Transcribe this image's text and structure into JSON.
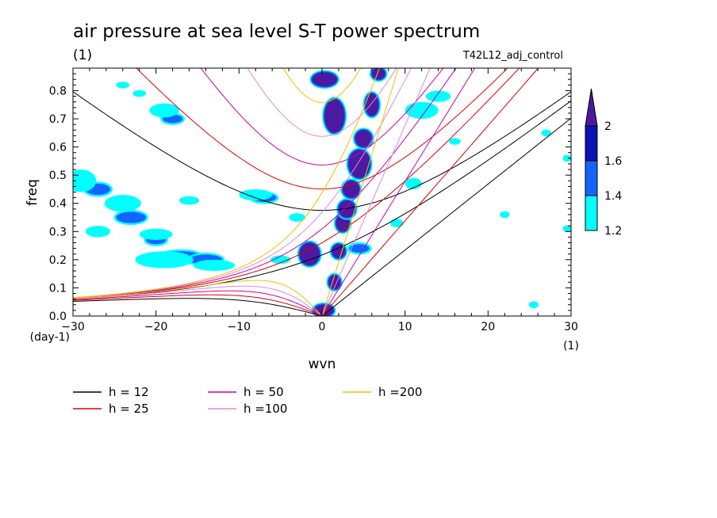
{
  "chart_data": {
    "type": "heatmap",
    "title": "air pressure at sea level S-T power spectrum",
    "title_unit": "(1)",
    "subtitle_right": "T42L12_adj_control",
    "xlabel": "wvn",
    "ylabel": "freq",
    "x_unit": "(1)",
    "y_unit": "(day-1)",
    "xlim": [
      -30,
      30
    ],
    "ylim": [
      0,
      0.88
    ],
    "xticks": [
      -30,
      -20,
      -10,
      0,
      10,
      20,
      30
    ],
    "yticks": [
      0.0,
      0.1,
      0.2,
      0.3,
      0.4,
      0.5,
      0.6,
      0.7,
      0.8
    ],
    "colorbar": {
      "levels": [
        "1.2",
        "1.4",
        "1.6",
        "2"
      ],
      "colors": [
        "#00ffff",
        "#1464ff",
        "#0a14b4",
        "#4b1aa0"
      ]
    },
    "dispersion_curves": [
      {
        "label": "h = 12",
        "h": 12,
        "color": "#000000"
      },
      {
        "label": "h = 25",
        "h": 25,
        "color": "#dd0000"
      },
      {
        "label": "h = 50",
        "h": 50,
        "color": "#cc00aa"
      },
      {
        "label": "h =100",
        "h": 100,
        "color": "#dd88dd"
      },
      {
        "label": "h =200",
        "h": 200,
        "color": "#f0c000"
      }
    ],
    "shaded_regions": [
      {
        "level": "2",
        "x": 0.2,
        "y": 0.02,
        "rx": 1.2,
        "ry": 0.02
      },
      {
        "level": "2",
        "x": 1.5,
        "y": 0.12,
        "rx": 0.7,
        "ry": 0.025
      },
      {
        "level": "2",
        "x": -1.5,
        "y": 0.22,
        "rx": 1.2,
        "ry": 0.04
      },
      {
        "level": "2",
        "x": 2.0,
        "y": 0.23,
        "rx": 0.8,
        "ry": 0.025
      },
      {
        "level": "2",
        "x": 2.5,
        "y": 0.33,
        "rx": 0.8,
        "ry": 0.03
      },
      {
        "level": "2",
        "x": 3.0,
        "y": 0.38,
        "rx": 1.0,
        "ry": 0.03
      },
      {
        "level": "2",
        "x": 3.5,
        "y": 0.45,
        "rx": 1.0,
        "ry": 0.03
      },
      {
        "level": "2",
        "x": 4.5,
        "y": 0.54,
        "rx": 1.3,
        "ry": 0.05
      },
      {
        "level": "2",
        "x": 5.0,
        "y": 0.63,
        "rx": 1.0,
        "ry": 0.03
      },
      {
        "level": "2",
        "x": 1.5,
        "y": 0.71,
        "rx": 1.2,
        "ry": 0.06
      },
      {
        "level": "2",
        "x": 6.0,
        "y": 0.75,
        "rx": 0.8,
        "ry": 0.04
      },
      {
        "level": "2",
        "x": 0.3,
        "y": 0.84,
        "rx": 1.5,
        "ry": 0.025
      },
      {
        "level": "2",
        "x": 6.8,
        "y": 0.86,
        "rx": 0.8,
        "ry": 0.02
      },
      {
        "level": "1.4",
        "x": -23,
        "y": 0.35,
        "rx": 1.8,
        "ry": 0.02
      },
      {
        "level": "1.4",
        "x": -20,
        "y": 0.27,
        "rx": 1.2,
        "ry": 0.015
      },
      {
        "level": "1.4",
        "x": -17,
        "y": 0.21,
        "rx": 2.5,
        "ry": 0.02
      },
      {
        "level": "1.4",
        "x": -14,
        "y": 0.2,
        "rx": 2.0,
        "ry": 0.018
      },
      {
        "level": "1.4",
        "x": -27,
        "y": 0.45,
        "rx": 1.5,
        "ry": 0.02
      },
      {
        "level": "1.4",
        "x": -18,
        "y": 0.7,
        "rx": 1.2,
        "ry": 0.015
      },
      {
        "level": "1.4",
        "x": -7,
        "y": 0.42,
        "rx": 1.5,
        "ry": 0.015
      },
      {
        "level": "1.4",
        "x": 4.5,
        "y": 0.24,
        "rx": 1.2,
        "ry": 0.015
      },
      {
        "level": "1.2",
        "x": -29,
        "y": 0.48,
        "rx": 1.8,
        "ry": 0.04
      },
      {
        "level": "1.2",
        "x": -24,
        "y": 0.4,
        "rx": 2.2,
        "ry": 0.03
      },
      {
        "level": "1.2",
        "x": -27,
        "y": 0.3,
        "rx": 1.5,
        "ry": 0.02
      },
      {
        "level": "1.2",
        "x": -19,
        "y": 0.2,
        "rx": 3.5,
        "ry": 0.03
      },
      {
        "level": "1.2",
        "x": -13,
        "y": 0.18,
        "rx": 2.5,
        "ry": 0.02
      },
      {
        "level": "1.2",
        "x": -20,
        "y": 0.29,
        "rx": 2.0,
        "ry": 0.02
      },
      {
        "level": "1.2",
        "x": -16,
        "y": 0.41,
        "rx": 1.2,
        "ry": 0.015
      },
      {
        "level": "1.2",
        "x": -19,
        "y": 0.73,
        "rx": 1.8,
        "ry": 0.025
      },
      {
        "level": "1.2",
        "x": -22,
        "y": 0.79,
        "rx": 0.8,
        "ry": 0.012
      },
      {
        "level": "1.2",
        "x": -8,
        "y": 0.43,
        "rx": 2.0,
        "ry": 0.02
      },
      {
        "level": "1.2",
        "x": -5,
        "y": 0.2,
        "rx": 1.2,
        "ry": 0.015
      },
      {
        "level": "1.2",
        "x": -3,
        "y": 0.35,
        "rx": 1.0,
        "ry": 0.015
      },
      {
        "level": "1.2",
        "x": 12,
        "y": 0.73,
        "rx": 2.0,
        "ry": 0.03
      },
      {
        "level": "1.2",
        "x": 14,
        "y": 0.78,
        "rx": 1.5,
        "ry": 0.02
      },
      {
        "level": "1.2",
        "x": 11,
        "y": 0.47,
        "rx": 1.0,
        "ry": 0.02
      },
      {
        "level": "1.2",
        "x": 9,
        "y": 0.33,
        "rx": 0.8,
        "ry": 0.015
      },
      {
        "level": "1.2",
        "x": 16,
        "y": 0.62,
        "rx": 0.7,
        "ry": 0.012
      },
      {
        "level": "1.2",
        "x": 27,
        "y": 0.65,
        "rx": 0.6,
        "ry": 0.012
      },
      {
        "level": "1.2",
        "x": 29.5,
        "y": 0.56,
        "rx": 0.5,
        "ry": 0.012
      },
      {
        "level": "1.2",
        "x": 22,
        "y": 0.36,
        "rx": 0.6,
        "ry": 0.012
      },
      {
        "level": "1.2",
        "x": 25.5,
        "y": 0.04,
        "rx": 0.6,
        "ry": 0.012
      },
      {
        "level": "1.2",
        "x": 29.5,
        "y": 0.31,
        "rx": 0.5,
        "ry": 0.012
      },
      {
        "level": "1.2",
        "x": -24,
        "y": 0.82,
        "rx": 0.8,
        "ry": 0.012
      }
    ]
  }
}
